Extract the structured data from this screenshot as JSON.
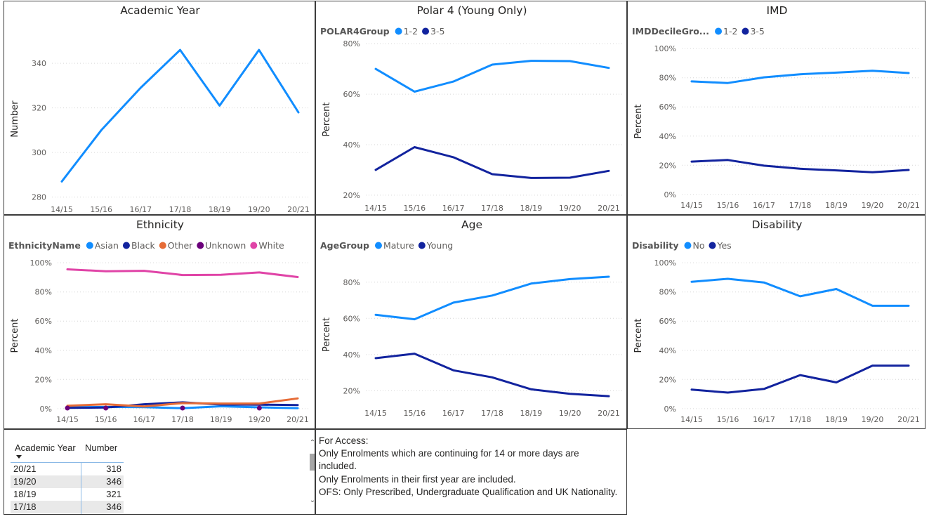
{
  "chart_data": [
    {
      "id": "academic_year",
      "type": "line",
      "title": "Academic Year",
      "ylabel": "Number",
      "categories": [
        "14/15",
        "15/16",
        "16/17",
        "17/18",
        "18/19",
        "19/20",
        "20/21"
      ],
      "ylim": [
        278,
        352
      ],
      "yticks": [
        280,
        300,
        320,
        340
      ],
      "yticklabels": [
        "280",
        "300",
        "320",
        "340"
      ],
      "series": [
        {
          "color": "#118dff",
          "values": [
            287,
            310,
            329,
            346,
            321,
            346,
            318
          ]
        }
      ]
    },
    {
      "id": "polar4",
      "type": "line",
      "title": "Polar 4 (Young Only)",
      "ylabel": "Percent",
      "legend_title": "POLAR4Group",
      "categories": [
        "14/15",
        "15/16",
        "16/17",
        "17/18",
        "18/19",
        "19/20",
        "20/21"
      ],
      "ylim": [
        18,
        82
      ],
      "yticks": [
        20,
        40,
        60,
        80
      ],
      "yticklabels": [
        "20%",
        "40%",
        "60%",
        "80%"
      ],
      "series": [
        {
          "name": "1-2",
          "color": "#118dff",
          "values": [
            70,
            61,
            65,
            71.7,
            73.2,
            73.1,
            70.4
          ]
        },
        {
          "name": "3-5",
          "color": "#12239e",
          "values": [
            30,
            39,
            35,
            28.3,
            26.8,
            26.9,
            29.6
          ]
        }
      ]
    },
    {
      "id": "imd",
      "type": "line",
      "title": "IMD",
      "ylabel": "Percent",
      "legend_title": "IMDDecileGro...",
      "categories": [
        "14/15",
        "15/16",
        "16/17",
        "17/18",
        "18/19",
        "19/20",
        "20/21"
      ],
      "ylim": [
        -2,
        102
      ],
      "yticks": [
        0,
        20,
        40,
        60,
        80,
        100
      ],
      "yticklabels": [
        "0%",
        "20%",
        "40%",
        "60%",
        "80%",
        "100%"
      ],
      "series": [
        {
          "name": "1-2",
          "color": "#118dff",
          "values": [
            77.5,
            76.4,
            80.3,
            82.4,
            83.5,
            84.8,
            83.2
          ]
        },
        {
          "name": "3-5",
          "color": "#12239e",
          "values": [
            22.5,
            23.6,
            19.7,
            17.6,
            16.5,
            15.2,
            16.8
          ]
        }
      ]
    },
    {
      "id": "ethnicity",
      "type": "line",
      "title": "Ethnicity",
      "ylabel": "Percent",
      "legend_title": "EthnicityName",
      "categories": [
        "14/15",
        "15/16",
        "16/17",
        "17/18",
        "18/19",
        "19/20",
        "20/21"
      ],
      "ylim": [
        -2,
        102
      ],
      "yticks": [
        0,
        20,
        40,
        60,
        80,
        100
      ],
      "yticklabels": [
        "0%",
        "20%",
        "40%",
        "60%",
        "80%",
        "100%"
      ],
      "series": [
        {
          "name": "Asian",
          "color": "#118dff",
          "values": [
            1.0,
            1.2,
            1.0,
            0.3,
            1.6,
            0.9,
            0.3
          ]
        },
        {
          "name": "Black",
          "color": "#12239e",
          "values": [
            0.5,
            0.8,
            3.0,
            4.3,
            2.8,
            2.7,
            2.5
          ]
        },
        {
          "name": "Other",
          "color": "#e66c37",
          "values": [
            2.0,
            3.0,
            1.5,
            3.8,
            3.5,
            3.5,
            7.0
          ]
        },
        {
          "name": "Unknown",
          "color": "#6b007b",
          "values": [
            0.4,
            0.4,
            null,
            0.4,
            null,
            0.4,
            null
          ]
        },
        {
          "name": "White",
          "color": "#e044a7",
          "values": [
            95.5,
            94.2,
            94.5,
            91.6,
            91.8,
            93.4,
            90.2
          ]
        }
      ]
    },
    {
      "id": "age",
      "type": "line",
      "title": "Age",
      "ylabel": "Percent",
      "legend_title": "AgeGroup",
      "categories": [
        "14/15",
        "15/16",
        "16/17",
        "17/18",
        "18/19",
        "19/20",
        "20/21"
      ],
      "ylim": [
        12,
        90
      ],
      "yticks": [
        20,
        40,
        60,
        80
      ],
      "yticklabels": [
        "20%",
        "40%",
        "60%",
        "80%"
      ],
      "series": [
        {
          "name": "Mature",
          "color": "#118dff",
          "values": [
            62,
            59.5,
            68.7,
            72.6,
            79.2,
            81.7,
            83
          ]
        },
        {
          "name": "Young",
          "color": "#12239e",
          "values": [
            38,
            40.5,
            31.3,
            27.4,
            20.8,
            18.3,
            17
          ]
        }
      ]
    },
    {
      "id": "disability",
      "type": "line",
      "title": "Disability",
      "ylabel": "Percent",
      "legend_title": "Disability",
      "categories": [
        "14/15",
        "15/16",
        "16/17",
        "17/18",
        "18/19",
        "19/20",
        "20/21"
      ],
      "ylim": [
        -2,
        102
      ],
      "yticks": [
        0,
        20,
        40,
        60,
        80,
        100
      ],
      "yticklabels": [
        "0%",
        "20%",
        "40%",
        "60%",
        "80%",
        "100%"
      ],
      "series": [
        {
          "name": "No",
          "color": "#118dff",
          "values": [
            87,
            89,
            86.5,
            77,
            82,
            70.5,
            70.5
          ]
        },
        {
          "name": "Yes",
          "color": "#12239e",
          "values": [
            13,
            11,
            13.5,
            23,
            18,
            29.5,
            29.5
          ]
        }
      ]
    }
  ],
  "table": {
    "headers": [
      "Academic Year",
      "Number"
    ],
    "rows": [
      {
        "year": "20/21",
        "number": "318"
      },
      {
        "year": "19/20",
        "number": "346"
      },
      {
        "year": "18/19",
        "number": "321"
      },
      {
        "year": "17/18",
        "number": "346"
      }
    ]
  },
  "notes": {
    "line1": "For Access:",
    "line2": "Only Enrolments which are continuing for 14 or more days are",
    "line3": "included.",
    "line4": "Only Enrolments in their first year are included.",
    "line5": "OFS: Only Prescribed, Undergraduate Qualification and UK Nationality."
  },
  "scroll_icons": {
    "up": "chevron-up-icon",
    "down": "chevron-down-icon"
  }
}
